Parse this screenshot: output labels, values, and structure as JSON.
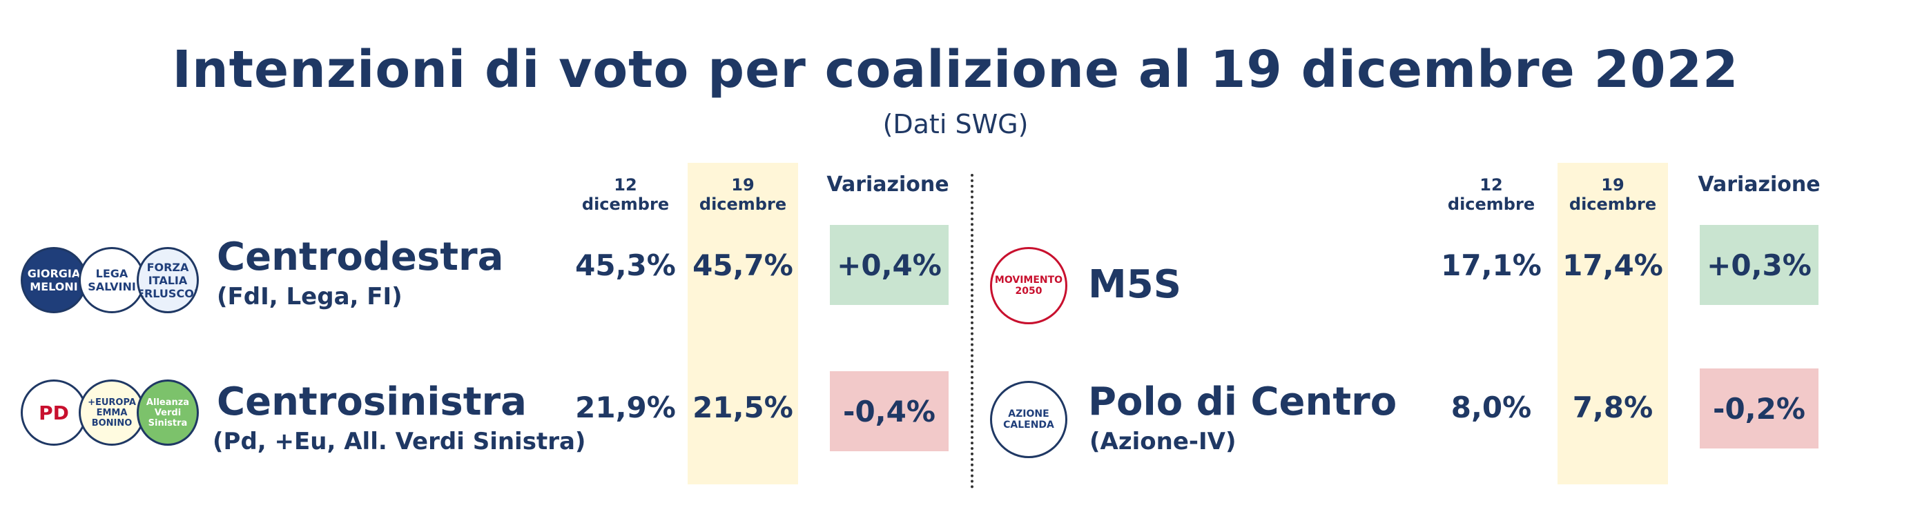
{
  "title": "Intenzioni di voto per coalizione al 19 dicembre 2022",
  "subtitle": "(Dati SWG)",
  "headers": {
    "prev": "12 dicembre",
    "curr": "19 dicembre",
    "change": "Variazione"
  },
  "logos": {
    "centrodestra": [
      "GIORGIA MELONI",
      "LEGA SALVINI",
      "FORZA ITALIA BERLUSCONI"
    ],
    "centrosinistra": [
      "PD",
      "+EUROPA EMMA BONINO",
      "Alleanza Verdi Sinistra"
    ],
    "m5s": [
      "MOVIMENTO 2050"
    ],
    "polo": [
      "AZIONE CALENDA"
    ]
  },
  "colors": {
    "positive": "#c9e4d0",
    "negative": "#f2c9c9",
    "highlight": "#fff6d8",
    "text": "#1f3864"
  },
  "chart_data": {
    "type": "table",
    "columns": [
      "12 dicembre",
      "19 dicembre",
      "Variazione"
    ],
    "rows": [
      {
        "name": "Centrodestra",
        "detail": "(FdI, Lega, FI)",
        "prev": "45,3%",
        "curr": "45,7%",
        "change": "+0,4%"
      },
      {
        "name": "Centrosinistra",
        "detail": "(Pd, +Eu, All. Verdi Sinistra)",
        "prev": "21,9%",
        "curr": "21,5%",
        "change": "-0,4%"
      },
      {
        "name": "M5S",
        "detail": "",
        "prev": "17,1%",
        "curr": "17,4%",
        "change": "+0,3%"
      },
      {
        "name": "Polo di Centro",
        "detail": "(Azione-IV)",
        "prev": "8,0%",
        "curr": "7,8%",
        "change": "-0,2%"
      }
    ]
  }
}
